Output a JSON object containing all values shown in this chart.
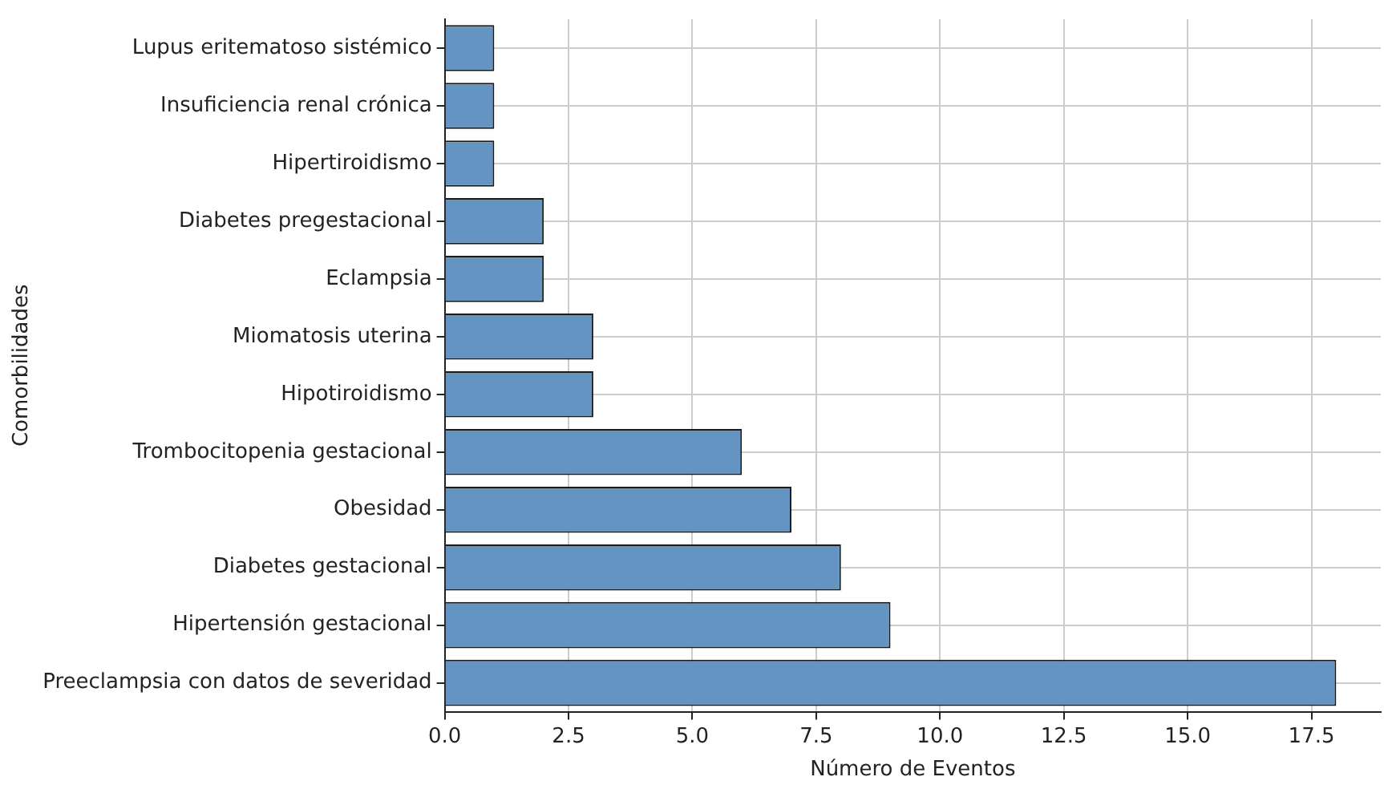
{
  "chart_data": {
    "type": "bar",
    "orientation": "horizontal",
    "xlabel": "Número de Eventos",
    "ylabel": "Comorbilidades",
    "categories": [
      "Lupus eritematoso sistémico",
      "Insuficiencia renal crónica",
      "Hipertiroidismo",
      "Diabetes pregestacional",
      "Eclampsia",
      "Miomatosis uterina",
      "Hipotiroidismo",
      "Trombocitopenia gestacional",
      "Obesidad",
      "Diabetes gestacional",
      "Hipertensión gestacional",
      "Preeclampsia con datos de severidad"
    ],
    "values": [
      1,
      1,
      1,
      2,
      2,
      3,
      3,
      6,
      7,
      8,
      9,
      18
    ],
    "color": "#6494c2",
    "xlim": [
      0,
      18.9
    ],
    "xticks": [
      {
        "value": 0,
        "label": "0.0"
      },
      {
        "value": 2.5,
        "label": "2.5"
      },
      {
        "value": 5,
        "label": "5.0"
      },
      {
        "value": 7.5,
        "label": "7.5"
      },
      {
        "value": 10,
        "label": "10.0"
      },
      {
        "value": 12.5,
        "label": "12.5"
      },
      {
        "value": 15,
        "label": "15.0"
      },
      {
        "value": 17.5,
        "label": "17.5"
      }
    ],
    "grid": true
  }
}
